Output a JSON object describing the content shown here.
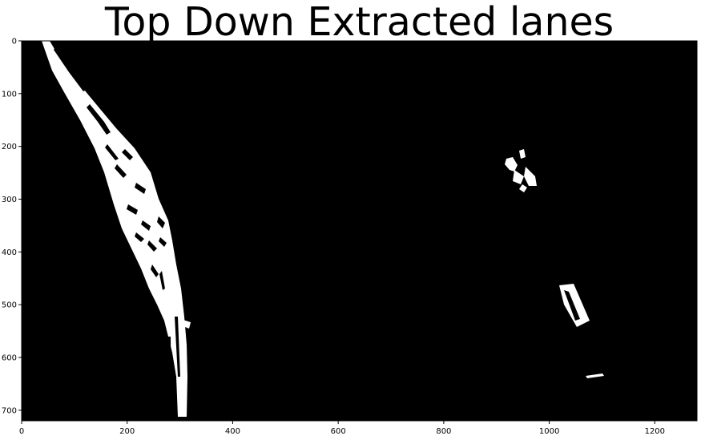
{
  "figure": {
    "title": "Top Down Extracted lanes",
    "colors": {
      "background": "#000000",
      "lane_pixels": "#ffffff",
      "axes_frame": "#000000"
    }
  },
  "image_axes": {
    "x_ticks": [
      0,
      200,
      400,
      600,
      800,
      1000,
      1200
    ],
    "y_ticks": [
      0,
      100,
      200,
      300,
      400,
      500,
      600,
      700
    ],
    "xlim": [
      0,
      1280
    ],
    "ylim": [
      720,
      0
    ],
    "grid": false
  }
}
